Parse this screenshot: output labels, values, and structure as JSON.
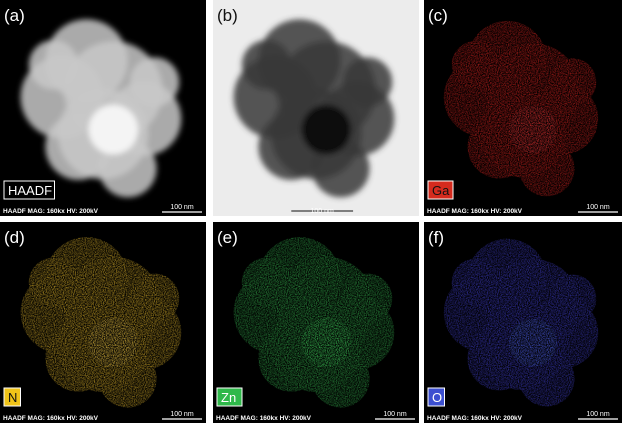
{
  "panels": [
    {
      "label": "(a)",
      "badge": "HAADF",
      "footer": "HAADF MAG: 160kx HV: 200kV",
      "scale": "100 nm"
    },
    {
      "label": "(b)",
      "scale": "100 nm"
    },
    {
      "label": "(c)",
      "badge": "Ga",
      "footer": "HAADF MAG: 160kx HV: 200kV",
      "scale": "100 nm"
    },
    {
      "label": "(d)",
      "badge": "N",
      "footer": "HAADF MAG: 160kx HV: 200kV",
      "scale": "100 nm"
    },
    {
      "label": "(e)",
      "badge": "Zn",
      "footer": "HAADF MAG: 160kx HV: 200kV",
      "scale": "100 nm"
    },
    {
      "label": "(f)",
      "badge": "O",
      "footer": "HAADF MAG: 160kx HV: 200kV",
      "scale": "100 nm"
    }
  ]
}
